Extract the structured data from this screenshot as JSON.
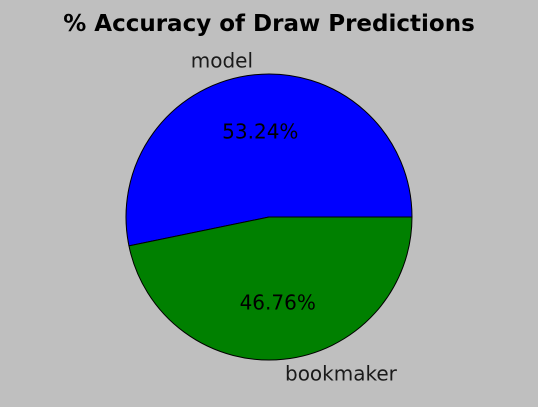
{
  "chart_data": {
    "type": "pie",
    "title": "% Accuracy of Draw Predictions",
    "slices": [
      {
        "label": "model",
        "value": 53.24,
        "pct_label": "53.24%",
        "color": "#0000ff"
      },
      {
        "label": "bookmaker",
        "value": 46.76,
        "pct_label": "46.76%",
        "color": "#008000"
      }
    ],
    "start_angle_deg": 0,
    "direction": "counterclockwise",
    "background": "#bfbfbf",
    "edge_color": "#000000"
  }
}
